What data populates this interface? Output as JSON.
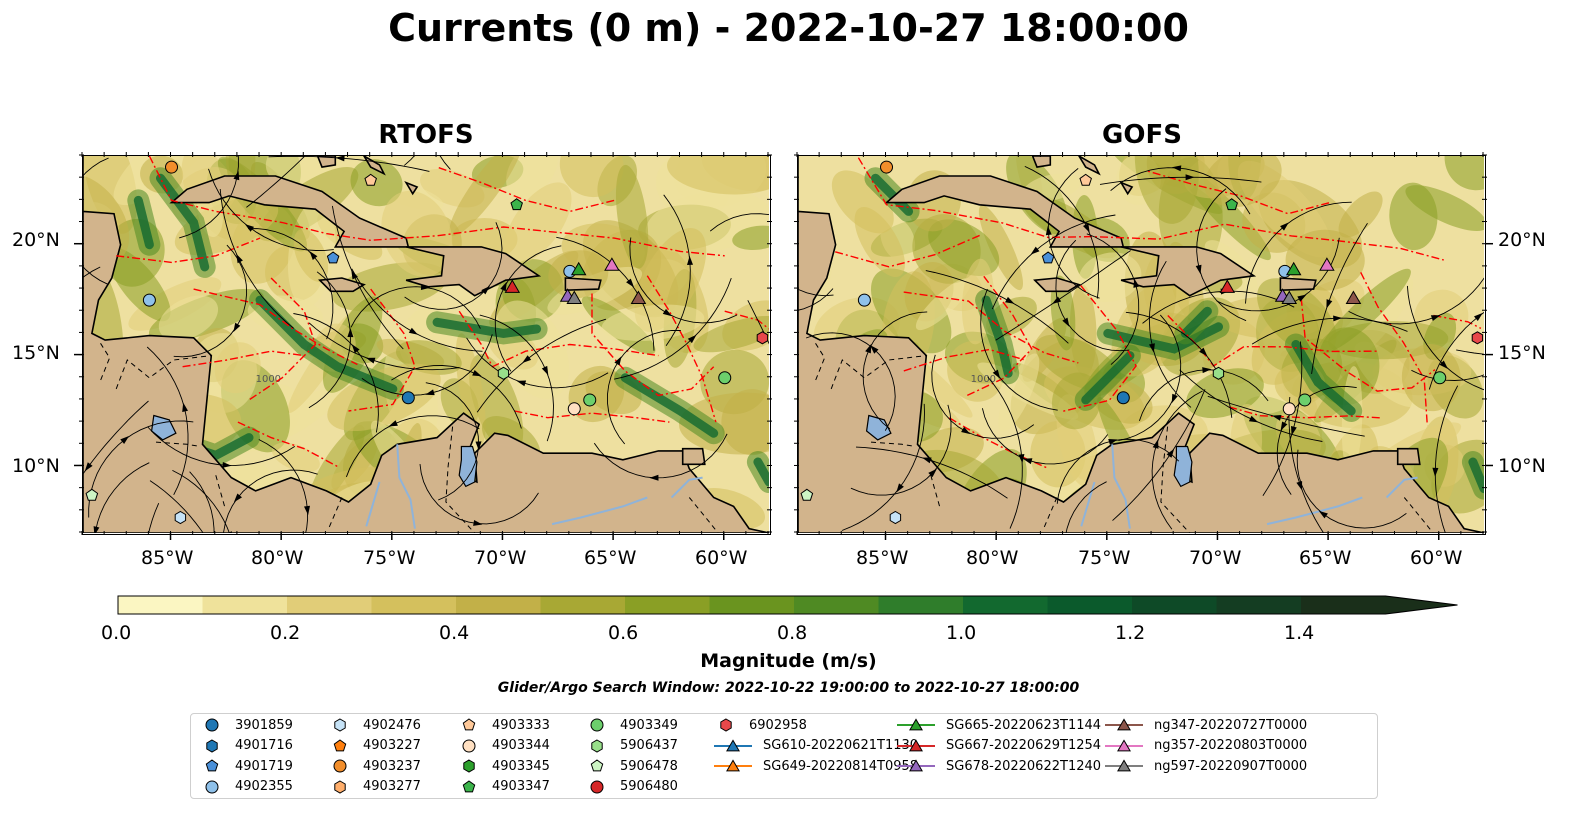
{
  "title": "Currents (0 m) - 2022-10-27 18:00:00",
  "panels": [
    {
      "title": "RTOFS"
    },
    {
      "title": "GOFS"
    }
  ],
  "map": {
    "lon_labels": [
      "85°W",
      "80°W",
      "75°W",
      "70°W",
      "65°W",
      "60°W"
    ],
    "lat_labels": [
      "20°N",
      "15°N",
      "10°N"
    ],
    "lon_range": [
      -89,
      -58
    ],
    "lat_range": [
      7,
      24
    ],
    "isobath_label": "1000",
    "land_color": "#d2b48c",
    "eez_color": "#ff0000"
  },
  "colorbar": {
    "label": "Magnitude (m/s)",
    "ticks": [
      "0.0",
      "0.2",
      "0.4",
      "0.6",
      "0.8",
      "1.0",
      "1.2",
      "1.4"
    ],
    "range": [
      0,
      1.5
    ],
    "colors": [
      "#fbf6c2",
      "#efe29b",
      "#e1cd78",
      "#d4c05d",
      "#c2b048",
      "#a8a834",
      "#8a9f25",
      "#6a941f",
      "#4f8a23",
      "#2f7d2b",
      "#12692f",
      "#0b5a2c",
      "#0e4a27",
      "#143d22",
      "#1a2f1a"
    ]
  },
  "search_window": "Glider/Argo Search Window: 2022-10-22 19:00:00 to 2022-10-27 18:00:00",
  "legend": [
    {
      "label": "3901859",
      "marker": "circle",
      "color": "#1f77b4"
    },
    {
      "label": "4901716",
      "marker": "hexagon",
      "color": "#1f77b4"
    },
    {
      "label": "4901719",
      "marker": "pentagon",
      "color": "#4a90d9"
    },
    {
      "label": "4902355",
      "marker": "circle",
      "color": "#8fc1ea"
    },
    {
      "label": "4902476",
      "marker": "hexagon",
      "color": "#c6e3f7"
    },
    {
      "label": "4903227",
      "marker": "pentagon",
      "color": "#ff7f0e"
    },
    {
      "label": "4903237",
      "marker": "circle",
      "color": "#f28e2b"
    },
    {
      "label": "4903277",
      "marker": "hexagon",
      "color": "#ffae6b"
    },
    {
      "label": "4903333",
      "marker": "pentagon",
      "color": "#ffc999"
    },
    {
      "label": "4903344",
      "marker": "circle",
      "color": "#ffe0c2"
    },
    {
      "label": "4903345",
      "marker": "hexagon",
      "color": "#2ca02c"
    },
    {
      "label": "4903347",
      "marker": "pentagon",
      "color": "#3cb44b"
    },
    {
      "label": "4903349",
      "marker": "circle",
      "color": "#6ccf6c"
    },
    {
      "label": "5906437",
      "marker": "hexagon",
      "color": "#98df8a"
    },
    {
      "label": "5906478",
      "marker": "pentagon",
      "color": "#cdf5c4"
    },
    {
      "label": "5906480",
      "marker": "circle",
      "color": "#d62728"
    },
    {
      "label": "6902958",
      "marker": "hexagon",
      "color": "#e8484a"
    },
    {
      "label": "SG610-20220621T1130",
      "marker": "triangle",
      "color": "#1f77b4"
    },
    {
      "label": "SG649-20220814T0958",
      "marker": "triangle",
      "color": "#ff7f0e"
    },
    {
      "label": "SG665-20220623T1144",
      "marker": "triangle",
      "color": "#2ca02c"
    },
    {
      "label": "SG667-20220629T1254",
      "marker": "triangle",
      "color": "#d62728"
    },
    {
      "label": "SG678-20220622T1240",
      "marker": "triangle",
      "color": "#9467bd"
    },
    {
      "label": "ng347-20220727T0000",
      "marker": "triangle",
      "color": "#8c564b"
    },
    {
      "label": "ng357-20220803T0000",
      "marker": "triangle",
      "color": "#e377c2"
    },
    {
      "label": "ng597-20220907T0000",
      "marker": "triangle",
      "color": "#7f7f7f"
    }
  ],
  "positions": [
    {
      "id": "4903237",
      "lon": -85.0,
      "lat": 23.5
    },
    {
      "id": "4903333",
      "lon": -76.0,
      "lat": 22.9
    },
    {
      "id": "4903347",
      "lon": -69.4,
      "lat": 21.8
    },
    {
      "id": "4901719",
      "lon": -77.7,
      "lat": 19.4
    },
    {
      "id": "4902355",
      "lon": -86.0,
      "lat": 17.5
    },
    {
      "id": "4902355",
      "lon": -67.0,
      "lat": 18.8
    },
    {
      "id": "SG665-20220623T1144",
      "lon": -66.6,
      "lat": 18.9
    },
    {
      "id": "ng357-20220803T0000",
      "lon": -65.1,
      "lat": 19.1
    },
    {
      "id": "SG667-20220629T1254",
      "lon": -69.6,
      "lat": 18.1
    },
    {
      "id": "SG678-20220622T1240",
      "lon": -67.1,
      "lat": 17.7
    },
    {
      "id": "ng597-20220907T0000",
      "lon": -66.8,
      "lat": 17.6
    },
    {
      "id": "ng347-20220727T0000",
      "lon": -63.9,
      "lat": 17.6
    },
    {
      "id": "6902958",
      "lon": -58.3,
      "lat": 15.8
    },
    {
      "id": "5906437",
      "lon": -70.0,
      "lat": 14.2
    },
    {
      "id": "4903349",
      "lon": -60.0,
      "lat": 14.0
    },
    {
      "id": "3901859",
      "lon": -74.3,
      "lat": 13.1
    },
    {
      "id": "4903349",
      "lon": -66.1,
      "lat": 13.0
    },
    {
      "id": "4903344",
      "lon": -66.8,
      "lat": 12.6
    },
    {
      "id": "5906478",
      "lon": -88.6,
      "lat": 8.7
    },
    {
      "id": "4902476",
      "lon": -84.6,
      "lat": 7.7
    }
  ]
}
